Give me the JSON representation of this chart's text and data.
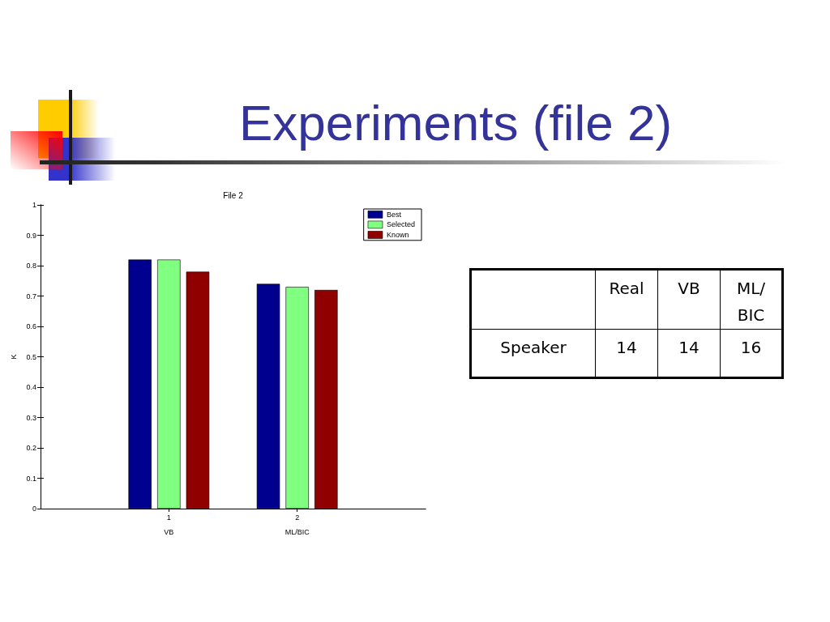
{
  "chart_data": [
    {
      "type": "bar",
      "title": "Experiments (file 2)",
      "subtitle": "File 2",
      "ylabel": "K",
      "x": [
        1,
        2
      ],
      "xlim": [
        0,
        3
      ],
      "xticks": [
        1,
        2
      ],
      "ylim": [
        0,
        1
      ],
      "yticks": [
        0,
        0.1,
        0.2,
        0.3,
        0.4,
        0.5,
        0.6,
        0.7,
        0.8,
        0.9,
        1
      ],
      "series": [
        {
          "name": "Best",
          "color": "#00008f",
          "values": [
            0.82,
            0.74
          ]
        },
        {
          "name": "Selected",
          "color": "#80ff80",
          "values": [
            0.82,
            0.73
          ]
        },
        {
          "name": "Known",
          "color": "#900000",
          "values": [
            0.78,
            0.72
          ]
        }
      ],
      "legend": "top right",
      "annotations": [
        "VB",
        "ML/BIC"
      ]
    },
    {
      "type": "other",
      "categories": [
        "Real",
        "VB",
        "ML/BIC"
      ],
      "y_categories": [
        "Speaker"
      ],
      "cell_labels": [
        [
          "14",
          "14",
          "16"
        ]
      ]
    }
  ]
}
